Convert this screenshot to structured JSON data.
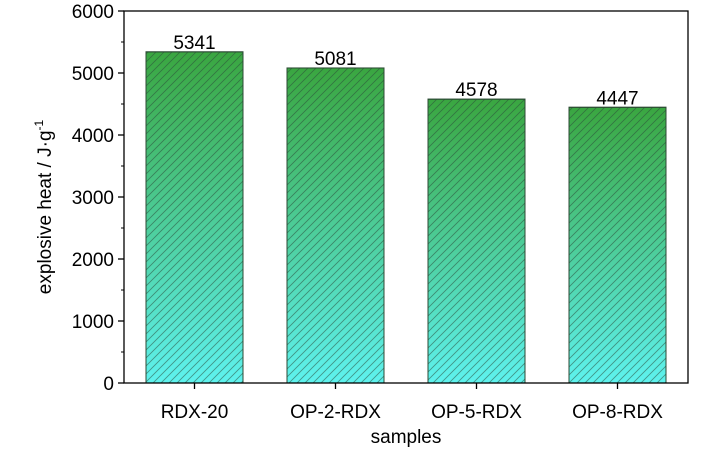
{
  "chart_data": {
    "type": "bar",
    "categories": [
      "RDX-20",
      "OP-2-RDX",
      "OP-5-RDX",
      "OP-8-RDX"
    ],
    "values": [
      5341,
      5081,
      4578,
      4447
    ],
    "value_labels": [
      "5341",
      "5081",
      "4578",
      "4447"
    ],
    "title": "",
    "xlabel": "samples",
    "ylabel": "explosive heat / J·g",
    "ylabel_superscript": "-1",
    "ylim": [
      0,
      6000
    ],
    "yticks": [
      0,
      1000,
      2000,
      3000,
      4000,
      5000,
      6000
    ],
    "grid": false,
    "legend": false,
    "colors": {
      "bar_top": "#3aa640",
      "bar_bottom": "#5ef2ee",
      "bar_stroke": "#2c4a34",
      "hatch": "#2a4a3a",
      "axis": "#000000"
    }
  }
}
